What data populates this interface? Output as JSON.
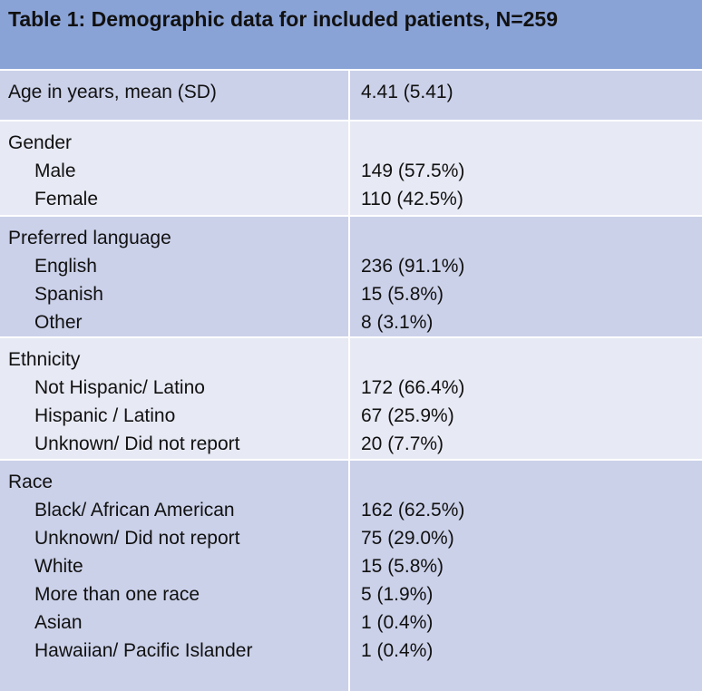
{
  "title": "Table 1: Demographic data for included patients, N=259",
  "sections": [
    {
      "header": "Age in years, mean (SD)",
      "header_value": "4.41 (5.41)",
      "rows": []
    },
    {
      "header": "Gender",
      "rows": [
        {
          "label": "Male",
          "value": "149 (57.5%)"
        },
        {
          "label": "Female",
          "value": "110 (42.5%)"
        }
      ]
    },
    {
      "header": "Preferred language",
      "rows": [
        {
          "label": "English",
          "value": "236 (91.1%)"
        },
        {
          "label": "Spanish",
          "value": "15 (5.8%)"
        },
        {
          "label": "Other",
          "value": "8 (3.1%)"
        }
      ]
    },
    {
      "header": "Ethnicity",
      "rows": [
        {
          "label": "Not Hispanic/ Latino",
          "value": "172 (66.4%)"
        },
        {
          "label": "Hispanic / Latino",
          "value": "67 (25.9%)"
        },
        {
          "label": "Unknown/ Did not report",
          "value": "20 (7.7%)"
        }
      ]
    },
    {
      "header": "Race",
      "rows": [
        {
          "label": "Black/ African American",
          "value": "162 (62.5%)"
        },
        {
          "label": "Unknown/ Did not report",
          "value": "75 (29.0%)"
        },
        {
          "label": "White",
          "value": "15 (5.8%)"
        },
        {
          "label": "More than one race",
          "value": "5 (1.9%)"
        },
        {
          "label": "Asian",
          "value": "1 (0.4%)"
        },
        {
          "label": "Hawaiian/ Pacific Islander",
          "value": "1 (0.4%)"
        }
      ]
    }
  ],
  "colors": {
    "title_band": "#8aa3d7",
    "row_dark": "#cbd1e9",
    "row_light": "#e7e9f4"
  }
}
